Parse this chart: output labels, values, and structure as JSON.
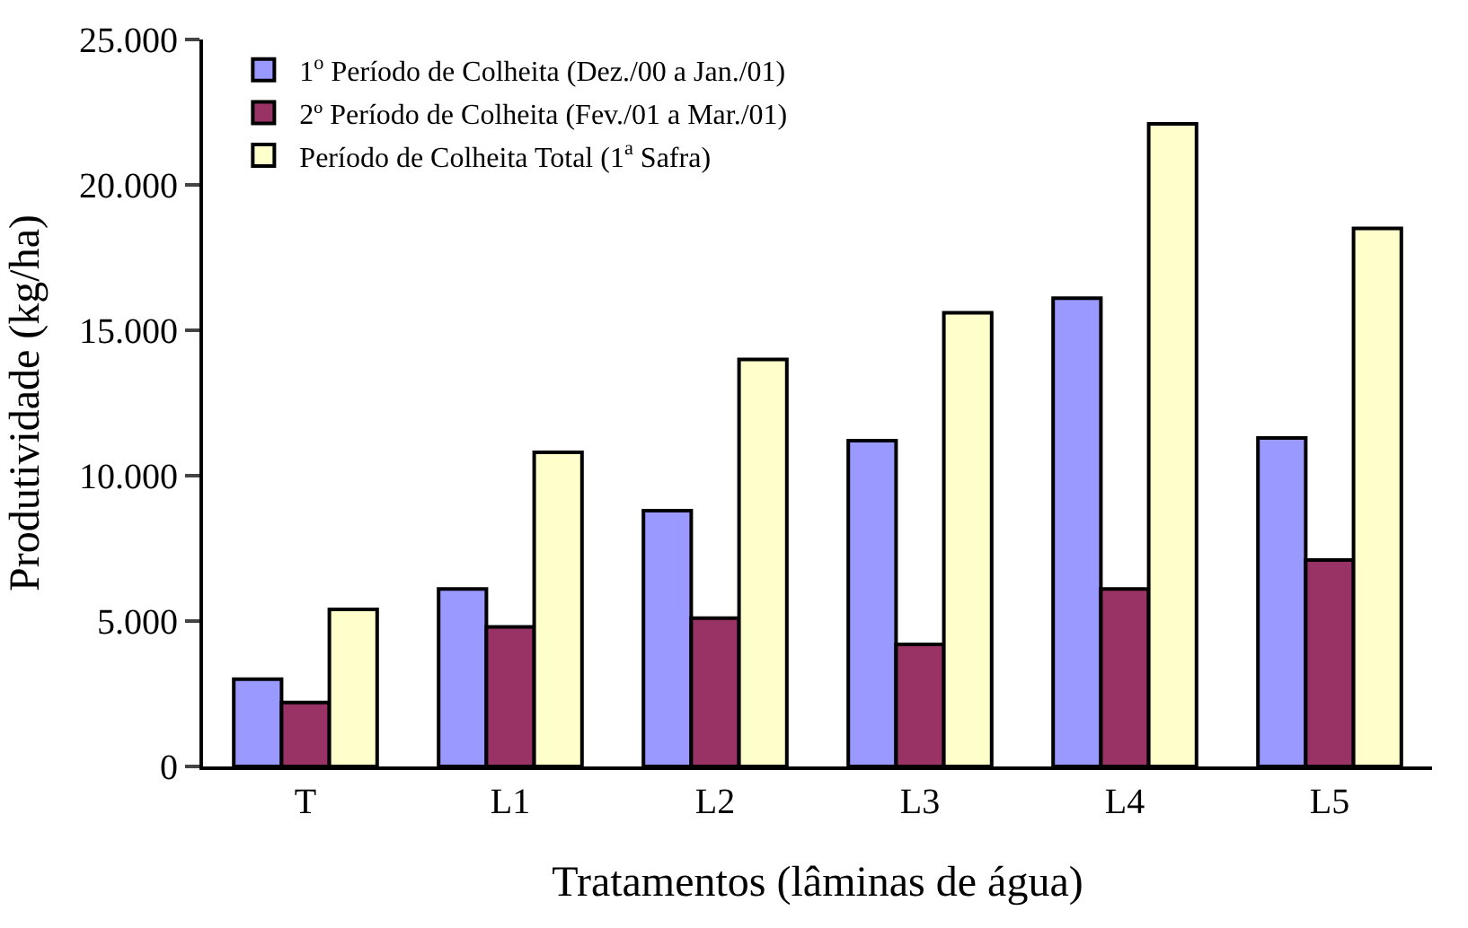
{
  "chart_data": {
    "type": "bar",
    "xlabel": "Tratamentos (lâminas de água)",
    "ylabel": "Produtividade (kg/ha)",
    "categories": [
      "T",
      "L1",
      "L2",
      "L3",
      "L4",
      "L5"
    ],
    "series": [
      {
        "name": "1$^{o}$ Período de Colheita (Dez./00 a Jan./01)",
        "color": "#9999ff",
        "values": [
          3000,
          6100,
          8800,
          11200,
          16100,
          11300
        ]
      },
      {
        "name": "2º Período de Colheita (Fev./01 a Mar./01)",
        "color": "#993366",
        "values": [
          2200,
          4800,
          5100,
          4200,
          6100,
          7100
        ]
      },
      {
        "name": "Período de Colheita Total (1$^{a}$ Safra)",
        "color": "#ffffcc",
        "values": [
          5400,
          10800,
          14000,
          15600,
          22100,
          18500
        ]
      }
    ],
    "ylim": [
      0,
      25000
    ],
    "yticks": [
      {
        "value": 0,
        "label": "0"
      },
      {
        "value": 5000,
        "label": "5.000"
      },
      {
        "value": 10000,
        "label": "10.000"
      },
      {
        "value": 15000,
        "label": "15.000"
      },
      {
        "value": 20000,
        "label": "20.000"
      },
      {
        "value": 25000,
        "label": "25.000"
      }
    ],
    "legend": "top left"
  }
}
